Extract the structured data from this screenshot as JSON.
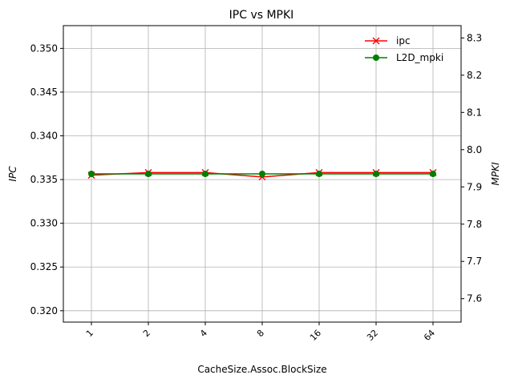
{
  "chart_data": {
    "type": "line",
    "title": "IPC vs MPKI",
    "xlabel": "CacheSize.Assoc.BlockSize",
    "ylabel_left": "IPC",
    "ylabel_right": "MPKI",
    "categories": [
      "1",
      "2",
      "4",
      "8",
      "16",
      "32",
      "64"
    ],
    "ylim_left": [
      0.3187,
      0.3526
    ],
    "ylim_right": [
      7.537,
      8.333
    ],
    "yticks_left": [
      "0.320",
      "0.325",
      "0.330",
      "0.335",
      "0.340",
      "0.345",
      "0.350"
    ],
    "yticks_right": [
      "7.6",
      "7.7",
      "7.8",
      "7.9",
      "8.0",
      "8.1",
      "8.2",
      "8.3"
    ],
    "grid": true,
    "legend_position": "top-right",
    "series": [
      {
        "name": "ipc",
        "axis": "left",
        "color": "#ff0000",
        "marker": "x",
        "values": [
          0.3355,
          0.3358,
          0.3358,
          0.3353,
          0.3358,
          0.3358,
          0.3358
        ]
      },
      {
        "name": "L2D_mpki",
        "axis": "right",
        "color": "#008000",
        "marker": "circle",
        "values": [
          7.935,
          7.935,
          7.935,
          7.935,
          7.935,
          7.935,
          7.935
        ]
      }
    ]
  }
}
